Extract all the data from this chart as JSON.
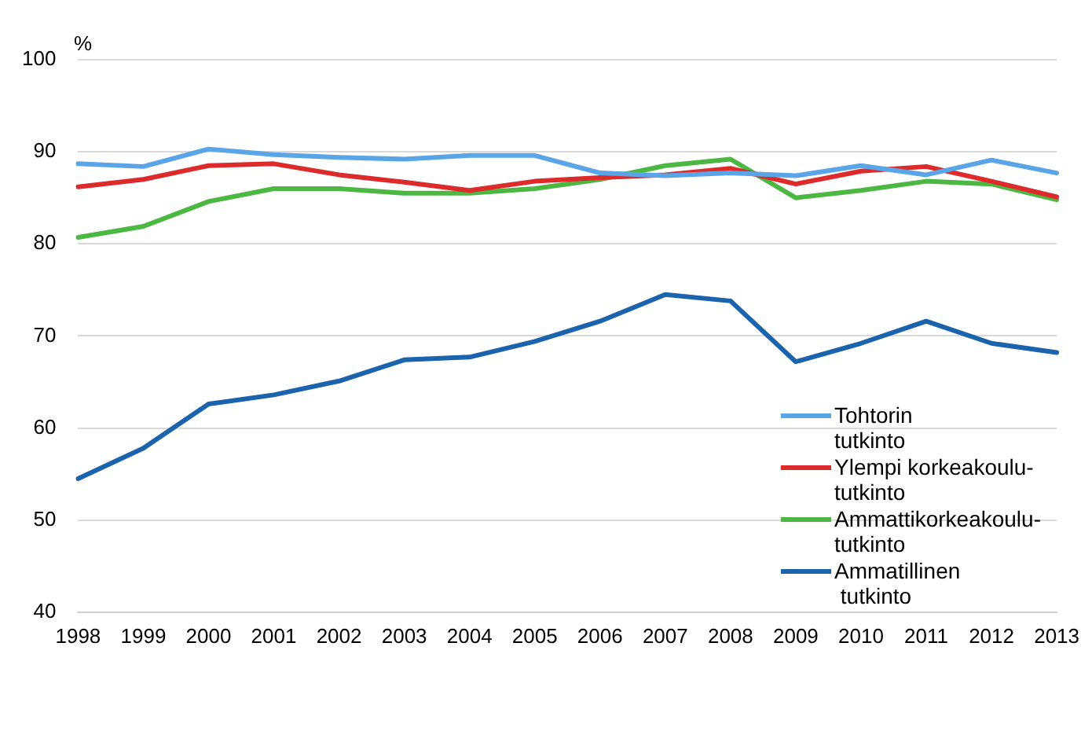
{
  "chart_data": {
    "type": "line",
    "ylabel": "%",
    "categories": [
      "1998",
      "1999",
      "2000",
      "2001",
      "2002",
      "2003",
      "2004",
      "2005",
      "2006",
      "2007",
      "2008",
      "2009",
      "2010",
      "2011",
      "2012",
      "2013"
    ],
    "ylim": [
      40,
      100
    ],
    "yticks": [
      40,
      50,
      60,
      70,
      80,
      90,
      100
    ],
    "grid": "y",
    "legend": "right",
    "marker": "none",
    "line_style": "solid",
    "series": [
      {
        "name": "Tohtorin\ntutkinto",
        "color": "#5aa5e8",
        "values": [
          88.7,
          88.4,
          90.3,
          89.7,
          89.4,
          89.2,
          89.6,
          89.6,
          87.7,
          87.4,
          87.7,
          87.4,
          88.5,
          87.5,
          89.1,
          87.7
        ]
      },
      {
        "name": "Ylempi korkeakoulu-\ntutkinto",
        "color": "#dd2a2a",
        "values": [
          86.2,
          87.0,
          88.5,
          88.7,
          87.5,
          86.7,
          85.8,
          86.8,
          87.2,
          87.5,
          88.2,
          86.5,
          87.9,
          88.4,
          86.8,
          85.1
        ]
      },
      {
        "name": "Ammattikorkeakoulu-\ntutkinto",
        "color": "#4cb843",
        "values": [
          80.7,
          81.9,
          84.6,
          86.0,
          86.0,
          85.5,
          85.5,
          86.0,
          87.0,
          88.5,
          89.2,
          85.0,
          85.8,
          86.8,
          86.5,
          84.8
        ]
      },
      {
        "name": "Ammatillinen\n tutkinto",
        "color": "#1c63ad",
        "values": [
          54.5,
          57.8,
          62.6,
          63.6,
          65.1,
          67.4,
          67.7,
          69.4,
          71.6,
          74.5,
          73.8,
          67.2,
          69.2,
          71.6,
          69.2,
          68.2
        ]
      }
    ]
  }
}
